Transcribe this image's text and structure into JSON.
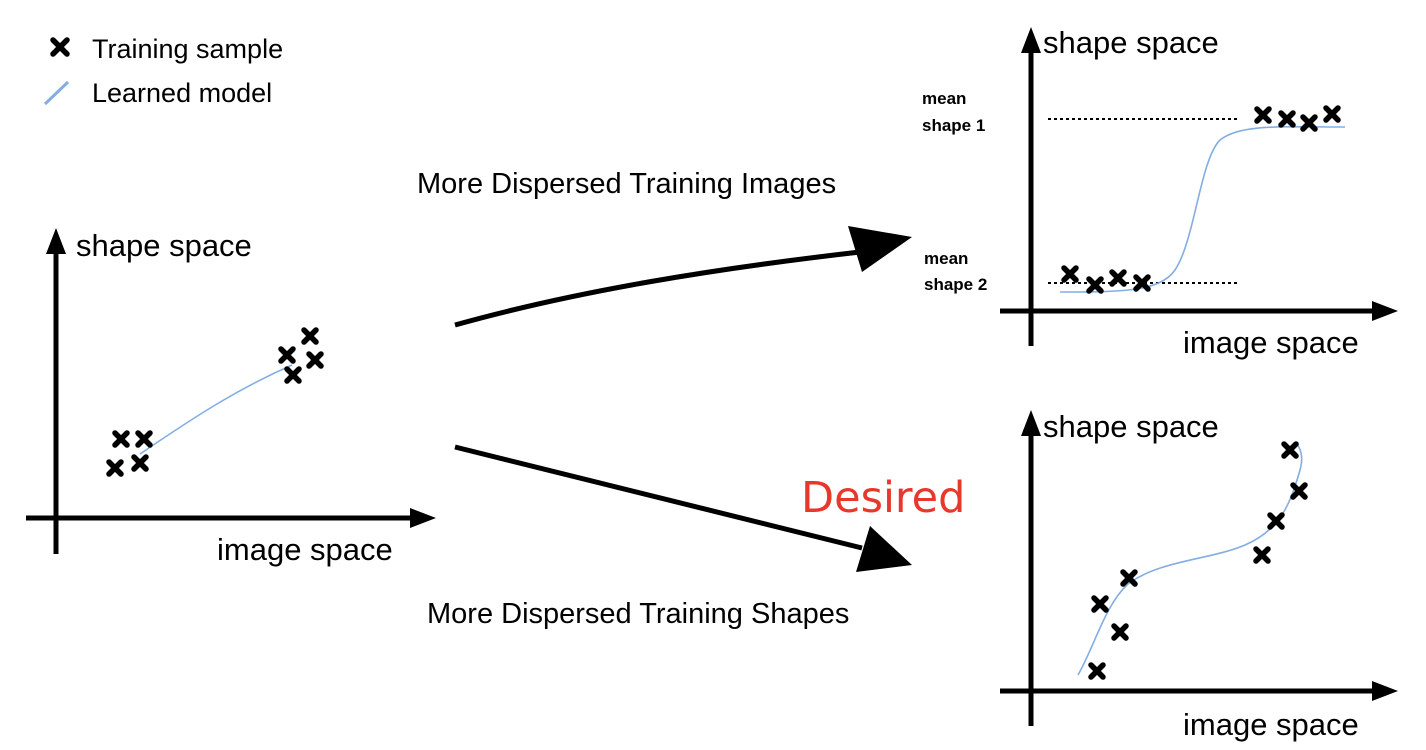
{
  "legend": {
    "sample_label": "Training sample",
    "model_label": "Learned model"
  },
  "colors": {
    "model_line": "#82aee2",
    "desired_text": "#e8372c",
    "ink": "#000000"
  },
  "panels": {
    "left": {
      "y_axis_label": "shape space",
      "x_axis_label": "image space"
    },
    "top_right": {
      "y_axis_label": "shape space",
      "x_axis_label": "image space",
      "mean1_line1": "mean",
      "mean1_line2": "shape 1",
      "mean2_line1": "mean",
      "mean2_line2": "shape 2"
    },
    "bottom_right": {
      "y_axis_label": "shape space",
      "x_axis_label": "image space"
    }
  },
  "arrows": {
    "upper_label": "More Dispersed Training Images",
    "lower_label": "More Dispersed Training Shapes",
    "desired_label": "Desired"
  }
}
